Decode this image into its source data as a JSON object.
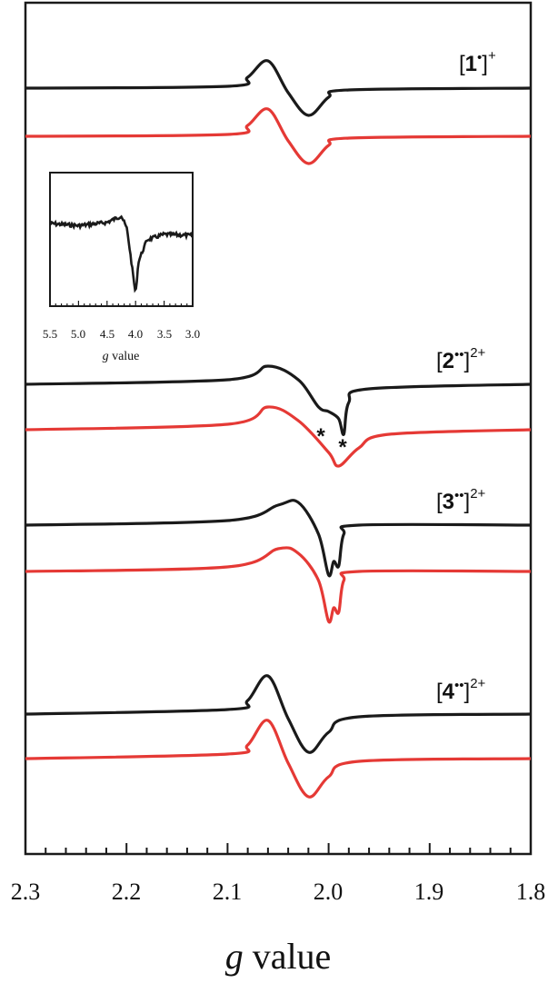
{
  "chart_data": {
    "type": "line",
    "xlabel_italic": "g",
    "xlabel_rest": " value",
    "xlim": [
      2.3,
      1.8
    ],
    "xticks": [
      "2.3",
      "2.2",
      "2.1",
      "2.0",
      "1.9",
      "1.8"
    ],
    "colors": {
      "experimental": "#1a1a1a",
      "simulated": "#e53935"
    },
    "spectra": [
      {
        "label": {
          "num": "1",
          "dots": "•",
          "charge": "+"
        },
        "experimental": {
          "x": [
            2.3,
            2.1,
            2.08,
            2.06,
            2.04,
            2.02,
            2.0,
            1.98,
            1.8
          ],
          "y": [
            0,
            0.02,
            0.12,
            0.3,
            -0.05,
            -0.3,
            -0.1,
            -0.02,
            0
          ]
        },
        "simulated": {
          "x": [
            2.3,
            2.1,
            2.08,
            2.06,
            2.04,
            2.02,
            2.0,
            1.98,
            1.8
          ],
          "y": [
            0,
            0.02,
            0.12,
            0.3,
            -0.05,
            -0.3,
            -0.1,
            -0.02,
            0
          ]
        }
      },
      {
        "label": {
          "num": "2",
          "dots": "••",
          "charge": "2+"
        },
        "experimental": {
          "x": [
            2.3,
            2.1,
            2.06,
            2.03,
            2.01,
            2.0,
            1.99,
            1.985,
            1.98,
            1.96,
            1.8
          ],
          "y": [
            0,
            0.05,
            0.2,
            0.05,
            -0.25,
            -0.3,
            -0.38,
            -0.55,
            -0.2,
            -0.05,
            0
          ]
        },
        "simulated": {
          "x": [
            2.3,
            2.1,
            2.06,
            2.03,
            2.0,
            1.99,
            1.97,
            1.94,
            1.8
          ],
          "y": [
            0,
            0.06,
            0.25,
            0.1,
            -0.25,
            -0.4,
            -0.2,
            -0.05,
            0
          ]
        }
      },
      {
        "label": {
          "num": "3",
          "dots": "••",
          "charge": "2+"
        },
        "experimental": {
          "x": [
            2.3,
            2.1,
            2.05,
            2.03,
            2.01,
            2.0,
            1.995,
            1.99,
            1.985,
            1.97,
            1.8
          ],
          "y": [
            0,
            0.05,
            0.22,
            0.25,
            -0.1,
            -0.55,
            -0.4,
            -0.45,
            -0.1,
            0,
            0
          ]
        },
        "simulated": {
          "x": [
            2.3,
            2.1,
            2.05,
            2.03,
            2.01,
            2.0,
            1.995,
            1.99,
            1.985,
            1.97,
            1.8
          ],
          "y": [
            0,
            0.05,
            0.25,
            0.2,
            -0.1,
            -0.55,
            -0.4,
            -0.45,
            -0.1,
            0,
            0
          ]
        }
      },
      {
        "label": {
          "num": "4",
          "dots": "••",
          "charge": "2+"
        },
        "experimental": {
          "x": [
            2.3,
            2.1,
            2.08,
            2.06,
            2.04,
            2.02,
            2.0,
            1.97,
            1.8
          ],
          "y": [
            0,
            0.05,
            0.15,
            0.42,
            -0.05,
            -0.42,
            -0.2,
            -0.03,
            0
          ]
        },
        "simulated": {
          "x": [
            2.3,
            2.1,
            2.08,
            2.06,
            2.04,
            2.02,
            2.0,
            1.97,
            1.8
          ],
          "y": [
            0,
            0.05,
            0.15,
            0.42,
            -0.05,
            -0.42,
            -0.2,
            -0.03,
            0
          ]
        }
      }
    ],
    "annotations": [
      "*",
      "*"
    ],
    "inset": {
      "xlabel_italic": "g",
      "xlabel_rest": " value",
      "xlim": [
        5.5,
        3.0
      ],
      "xticks": [
        "5.5",
        "5.0",
        "4.5",
        "4.0",
        "3.5",
        "3.0"
      ],
      "x": [
        5.5,
        5.0,
        4.5,
        4.25,
        4.15,
        4.05,
        4.0,
        3.95,
        3.8,
        3.5,
        3.0
      ],
      "y": [
        0.05,
        0.03,
        0.06,
        0.12,
        0.0,
        -0.4,
        -0.6,
        -0.3,
        -0.1,
        -0.05,
        -0.06
      ]
    }
  }
}
